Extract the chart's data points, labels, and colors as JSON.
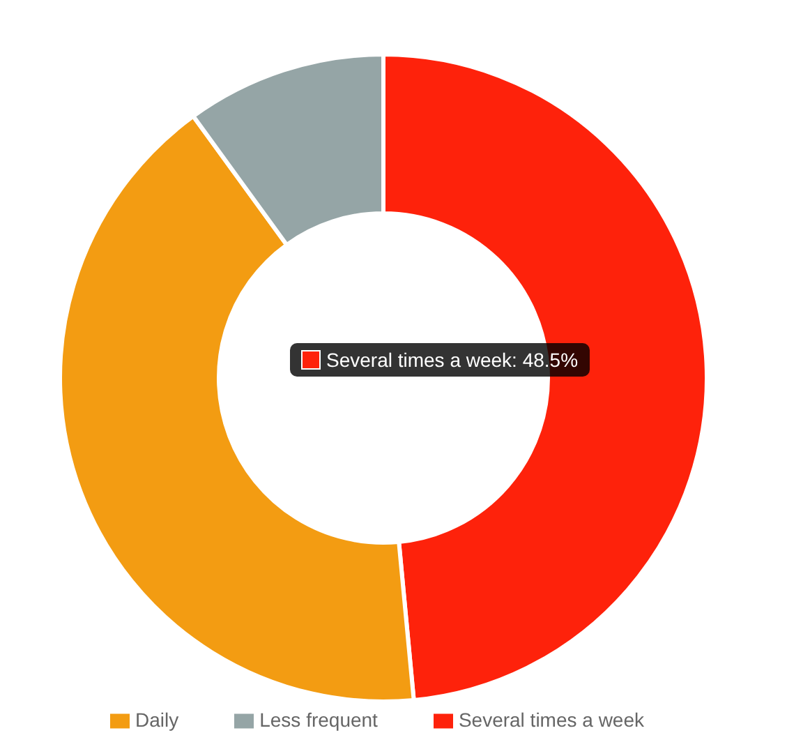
{
  "chart_data": {
    "type": "donut",
    "categories": [
      "Several times a week",
      "Daily",
      "Less frequent"
    ],
    "values": [
      48.5,
      41.5,
      10
    ],
    "colors": [
      "#fe220b",
      "#f39c12",
      "#95a5a6"
    ],
    "legend": "bottom",
    "annotations": [
      "Several times a week: 48.5%"
    ]
  }
}
